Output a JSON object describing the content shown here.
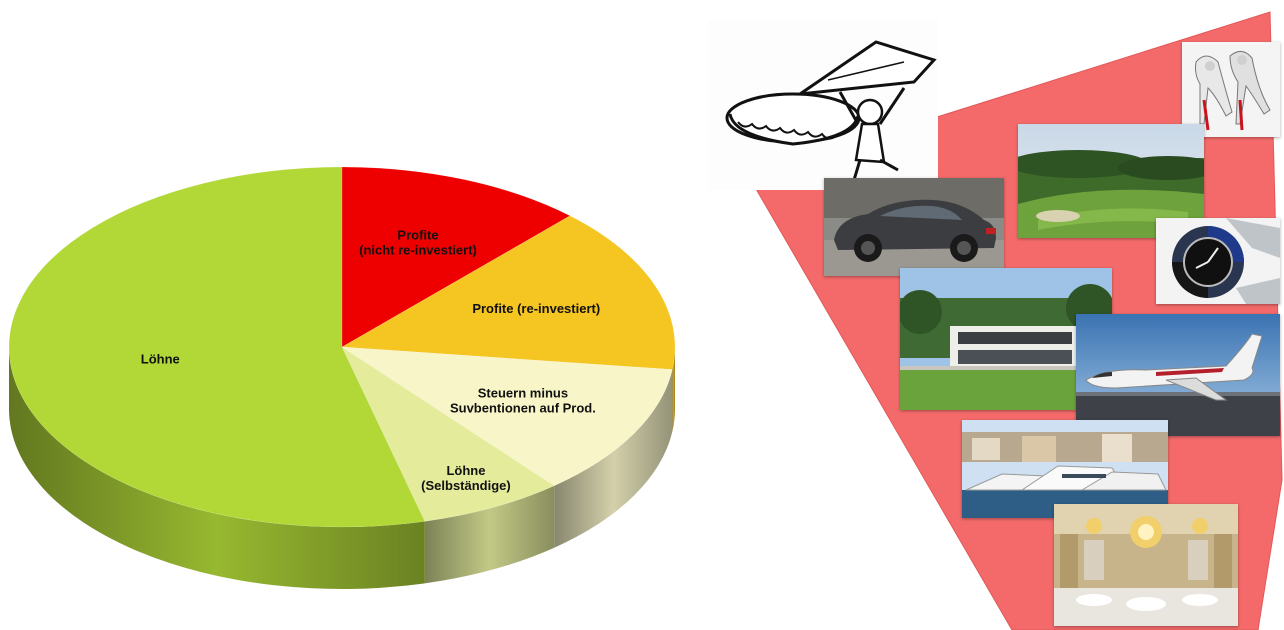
{
  "chart_data": {
    "type": "pie",
    "style": "3d",
    "categories": [
      "Profite\n(nicht re-investiert)",
      "Profite (re-investiert)",
      "Steuern minus\nSuvbentionen auf Prod.",
      "Löhne\n(Selbständige)",
      "Löhne"
    ],
    "values": [
      12,
      15,
      12,
      7,
      54
    ],
    "colors": [
      "#ee0000",
      "#f5c522",
      "#f8f5c8",
      "#e4ec9c",
      "#b2d838"
    ],
    "start_angle_deg": -90,
    "title": "",
    "legend": "none"
  },
  "collage": {
    "background_color": "#f46a6a",
    "images": [
      "pie-slice-cartoon",
      "high-heel-shoes-photo",
      "golf-course-photo",
      "porsche-suv-photo",
      "luxury-watch-photo",
      "modern-villa-photo",
      "private-jet-photo",
      "yacht-marina-photo",
      "chandelier-restaurant-photo"
    ]
  }
}
